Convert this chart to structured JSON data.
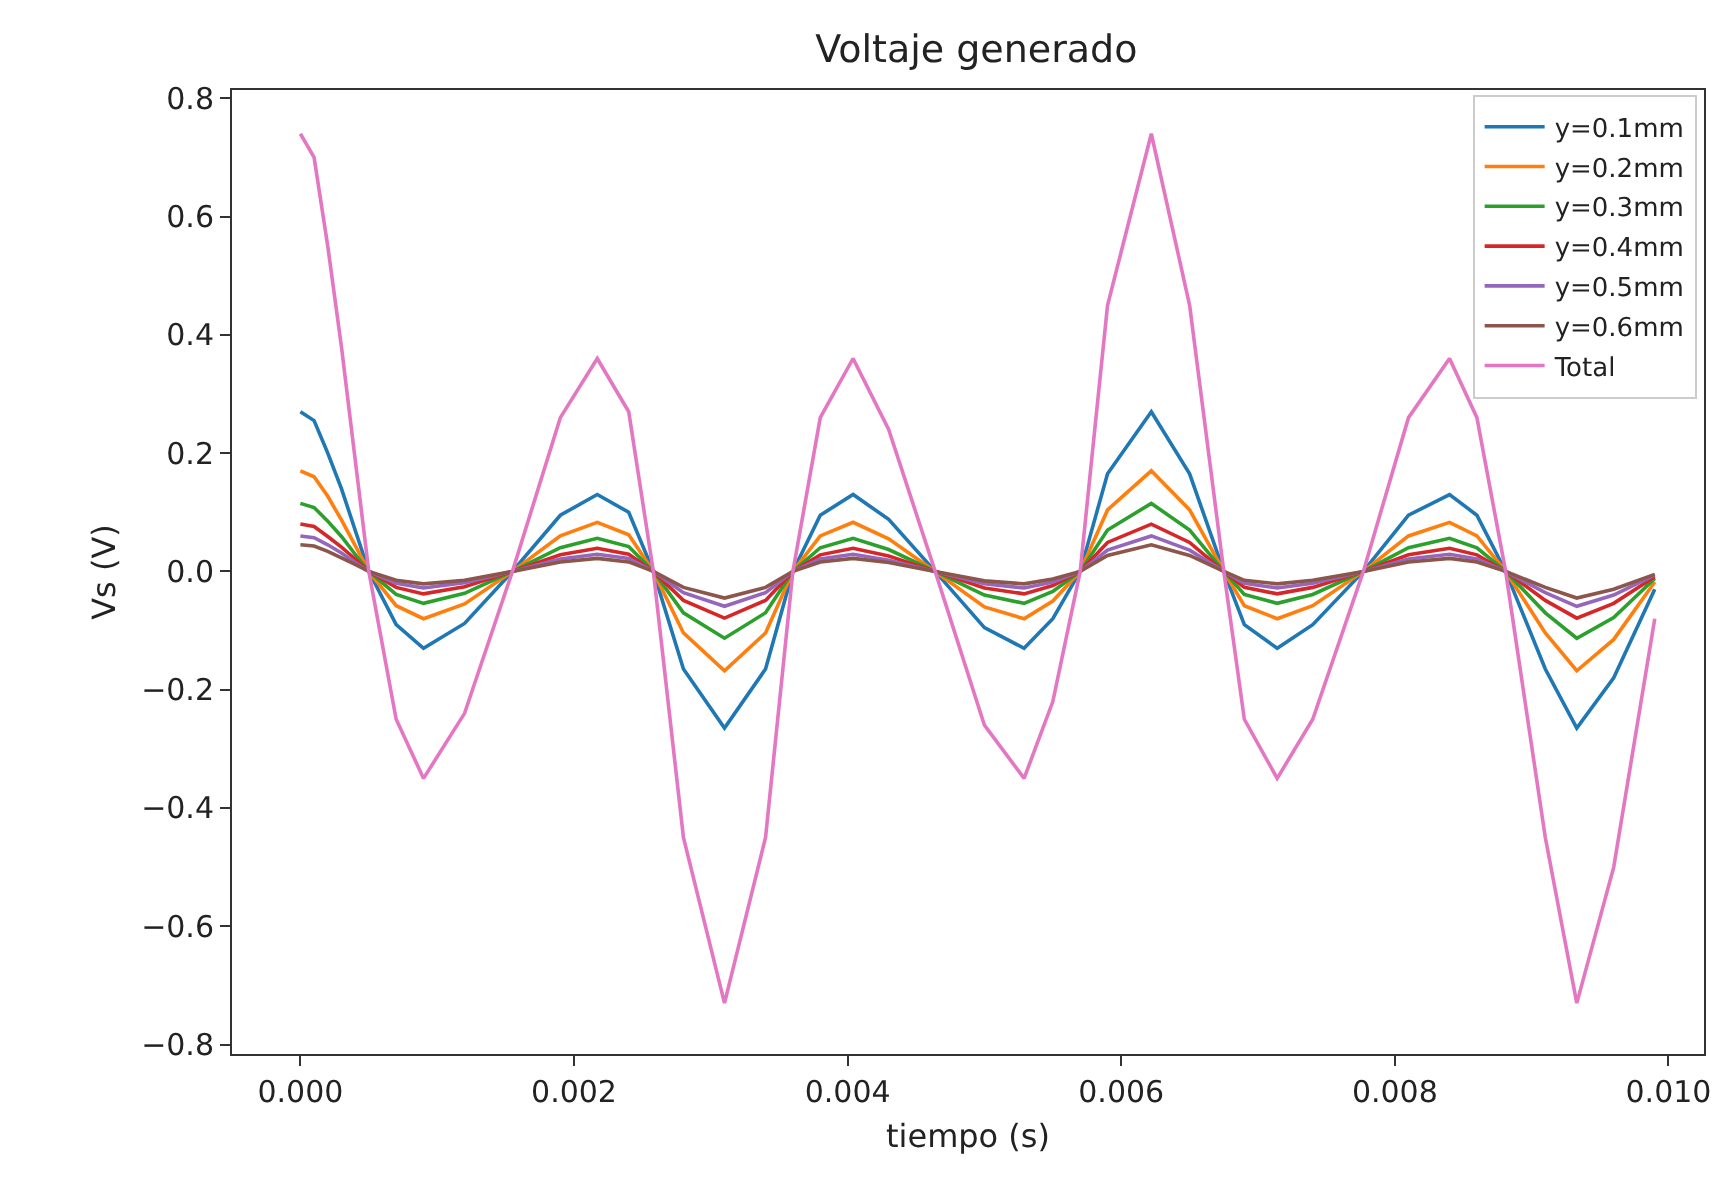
{
  "chart_data": {
    "type": "line",
    "title": "Voltaje generado",
    "xlabel": "tiempo (s)",
    "ylabel": "Vs (V)",
    "x": [
      0,
      0.0001,
      0.0002,
      0.0003,
      0.0004,
      0.0005,
      0.0007,
      0.0009,
      0.0012,
      0.00155,
      0.0019,
      0.00217,
      0.0024,
      0.00258,
      0.0028,
      0.0031,
      0.0034,
      0.0036,
      0.0038,
      0.00404,
      0.0043,
      0.00464,
      0.005,
      0.00529,
      0.0055,
      0.0057,
      0.0059,
      0.00622,
      0.0065,
      0.00675,
      0.0069,
      0.00714,
      0.0074,
      0.00777,
      0.0081,
      0.0084,
      0.0086,
      0.00881,
      0.0091,
      0.00933,
      0.0096,
      0.0099
    ],
    "series": [
      {
        "name": "y=0.1mm",
        "color": "#1f77b4",
        "values": [
          0.27,
          0.255,
          0.2,
          0.14,
          0.07,
          0,
          -0.09,
          -0.13,
          -0.088,
          0,
          0.095,
          0.13,
          0.1,
          0,
          -0.165,
          -0.265,
          -0.165,
          0,
          0.095,
          0.13,
          0.088,
          0,
          -0.095,
          -0.13,
          -0.08,
          0,
          0.165,
          0.27,
          0.165,
          0,
          -0.09,
          -0.13,
          -0.09,
          0,
          0.095,
          0.13,
          0.095,
          0,
          -0.165,
          -0.265,
          -0.18,
          -0.03
        ]
      },
      {
        "name": "y=0.2mm",
        "color": "#ff7f0e",
        "values": [
          0.17,
          0.16,
          0.127,
          0.087,
          0.044,
          0,
          -0.058,
          -0.08,
          -0.055,
          0,
          0.06,
          0.083,
          0.062,
          0,
          -0.104,
          -0.168,
          -0.104,
          0,
          0.06,
          0.083,
          0.055,
          0,
          -0.06,
          -0.08,
          -0.05,
          0,
          0.104,
          0.17,
          0.104,
          0,
          -0.058,
          -0.08,
          -0.058,
          0,
          0.06,
          0.083,
          0.06,
          0,
          -0.104,
          -0.168,
          -0.115,
          -0.018
        ]
      },
      {
        "name": "y=0.3mm",
        "color": "#2ca02c",
        "values": [
          0.115,
          0.108,
          0.085,
          0.059,
          0.029,
          0,
          -0.039,
          -0.054,
          -0.037,
          0,
          0.04,
          0.056,
          0.042,
          0,
          -0.07,
          -0.113,
          -0.07,
          0,
          0.04,
          0.056,
          0.037,
          0,
          -0.04,
          -0.054,
          -0.034,
          0,
          0.07,
          0.115,
          0.07,
          0,
          -0.039,
          -0.054,
          -0.039,
          0,
          0.04,
          0.056,
          0.04,
          0,
          -0.07,
          -0.113,
          -0.078,
          -0.012
        ]
      },
      {
        "name": "y=0.4mm",
        "color": "#d62728",
        "values": [
          0.08,
          0.076,
          0.059,
          0.041,
          0.021,
          0,
          -0.027,
          -0.038,
          -0.026,
          0,
          0.028,
          0.039,
          0.029,
          0,
          -0.049,
          -0.079,
          -0.049,
          0,
          0.028,
          0.039,
          0.026,
          0,
          -0.028,
          -0.038,
          -0.024,
          0,
          0.049,
          0.08,
          0.049,
          0,
          -0.027,
          -0.038,
          -0.027,
          0,
          0.028,
          0.039,
          0.028,
          0,
          -0.049,
          -0.079,
          -0.054,
          -0.009
        ]
      },
      {
        "name": "y=0.5mm",
        "color": "#9467bd",
        "values": [
          0.06,
          0.057,
          0.045,
          0.031,
          0.015,
          0,
          -0.02,
          -0.028,
          -0.019,
          0,
          0.021,
          0.029,
          0.022,
          0,
          -0.036,
          -0.059,
          -0.036,
          0,
          0.021,
          0.029,
          0.019,
          0,
          -0.021,
          -0.028,
          -0.018,
          0,
          0.036,
          0.06,
          0.036,
          0,
          -0.02,
          -0.028,
          -0.02,
          0,
          0.021,
          0.029,
          0.021,
          0,
          -0.036,
          -0.059,
          -0.04,
          -0.006
        ]
      },
      {
        "name": "y=0.6mm",
        "color": "#8c564b",
        "values": [
          0.045,
          0.043,
          0.034,
          0.023,
          0.012,
          0,
          -0.015,
          -0.021,
          -0.015,
          0,
          0.016,
          0.022,
          0.016,
          0,
          -0.027,
          -0.045,
          -0.027,
          0,
          0.016,
          0.022,
          0.015,
          0,
          -0.016,
          -0.021,
          -0.013,
          0,
          0.027,
          0.045,
          0.027,
          0,
          -0.015,
          -0.021,
          -0.015,
          0,
          0.016,
          0.022,
          0.016,
          0,
          -0.027,
          -0.045,
          -0.03,
          -0.005
        ]
      },
      {
        "name": "Total",
        "color": "#e377c2",
        "values": [
          0.74,
          0.7,
          0.55,
          0.38,
          0.19,
          0,
          -0.25,
          -0.35,
          -0.24,
          0,
          0.26,
          0.36,
          0.27,
          0,
          -0.45,
          -0.73,
          -0.45,
          0,
          0.26,
          0.36,
          0.24,
          0,
          -0.26,
          -0.35,
          -0.22,
          0,
          0.45,
          0.74,
          0.45,
          0,
          -0.25,
          -0.35,
          -0.25,
          0,
          0.26,
          0.36,
          0.26,
          0,
          -0.45,
          -0.73,
          -0.5,
          -0.08
        ]
      }
    ],
    "xlim": [
      -0.0005,
      0.01026
    ],
    "xticks": [
      {
        "value": 0,
        "label": "0.000"
      },
      {
        "value": 0.002,
        "label": "0.002"
      },
      {
        "value": 0.004,
        "label": "0.004"
      },
      {
        "value": 0.006,
        "label": "0.006"
      },
      {
        "value": 0.008,
        "label": "0.008"
      },
      {
        "value": 0.01,
        "label": "0.010"
      }
    ],
    "ylim": [
      -0.816,
      0.814
    ],
    "yticks": [
      {
        "value": -0.8,
        "label": "−0.8"
      },
      {
        "value": -0.6,
        "label": "−0.6"
      },
      {
        "value": -0.4,
        "label": "−0.4"
      },
      {
        "value": -0.2,
        "label": "−0.2"
      },
      {
        "value": 0,
        "label": "0.0"
      },
      {
        "value": 0.2,
        "label": "0.2"
      },
      {
        "value": 0.4,
        "label": "0.4"
      },
      {
        "value": 0.6,
        "label": "0.6"
      },
      {
        "value": 0.8,
        "label": "0.8"
      }
    ],
    "legend": "top right",
    "grid": false,
    "marker": "none",
    "line_style": "solid"
  }
}
